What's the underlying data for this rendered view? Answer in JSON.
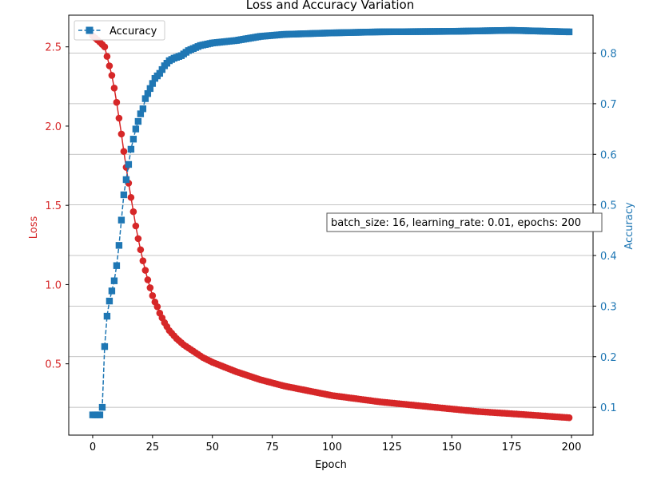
{
  "chart_data": {
    "type": "line",
    "title": "Loss and Accuracy Variation",
    "xlabel": "Epoch",
    "xlim": [
      -10,
      209
    ],
    "x_ticks": [
      0,
      25,
      50,
      75,
      100,
      125,
      150,
      175,
      200
    ],
    "left_axis": {
      "label": "Loss",
      "color": "#d62728",
      "ylim": [
        0.05,
        2.7
      ],
      "ticks": [
        0.5,
        1.0,
        1.5,
        2.0,
        2.5
      ]
    },
    "right_axis": {
      "label": "Accuracy",
      "color": "#1f77b4",
      "ylim": [
        0.045,
        0.875
      ],
      "ticks": [
        0.1,
        0.2,
        0.3,
        0.4,
        0.5,
        0.6,
        0.7,
        0.8
      ]
    },
    "grid": "horizontal-on-right-axis",
    "legend": {
      "position": "top-left",
      "entries": [
        "Accuracy"
      ]
    },
    "annotation": "batch_size: 16, learning_rate: 0.01, epochs: 200",
    "series": [
      {
        "name": "Loss",
        "axis": "left",
        "color": "#d62728",
        "linestyle": "solid",
        "marker": "circle",
        "keypoints": [
          [
            0,
            2.57
          ],
          [
            3,
            2.53
          ],
          [
            5,
            2.5
          ],
          [
            7,
            2.38
          ],
          [
            8,
            2.32
          ],
          [
            9,
            2.24
          ],
          [
            10,
            2.15
          ],
          [
            11,
            2.05
          ],
          [
            12,
            1.95
          ],
          [
            13,
            1.84
          ],
          [
            14,
            1.74
          ],
          [
            15,
            1.64
          ],
          [
            16,
            1.55
          ],
          [
            17,
            1.46
          ],
          [
            18,
            1.37
          ],
          [
            19,
            1.29
          ],
          [
            20,
            1.22
          ],
          [
            21,
            1.15
          ],
          [
            22,
            1.09
          ],
          [
            23,
            1.03
          ],
          [
            24,
            0.98
          ],
          [
            25,
            0.93
          ],
          [
            26,
            0.89
          ],
          [
            27,
            0.86
          ],
          [
            28,
            0.82
          ],
          [
            29,
            0.79
          ],
          [
            30,
            0.76
          ],
          [
            32,
            0.71
          ],
          [
            35,
            0.66
          ],
          [
            38,
            0.62
          ],
          [
            42,
            0.58
          ],
          [
            46,
            0.54
          ],
          [
            50,
            0.51
          ],
          [
            55,
            0.48
          ],
          [
            60,
            0.45
          ],
          [
            70,
            0.4
          ],
          [
            80,
            0.36
          ],
          [
            90,
            0.33
          ],
          [
            100,
            0.3
          ],
          [
            120,
            0.26
          ],
          [
            140,
            0.23
          ],
          [
            160,
            0.2
          ],
          [
            180,
            0.18
          ],
          [
            199,
            0.16
          ]
        ]
      },
      {
        "name": "Accuracy",
        "axis": "right",
        "color": "#1f77b4",
        "linestyle": "dashed",
        "marker": "square",
        "keypoints": [
          [
            0,
            0.085
          ],
          [
            1,
            0.085
          ],
          [
            2,
            0.085
          ],
          [
            3,
            0.085
          ],
          [
            4,
            0.1
          ],
          [
            5,
            0.22
          ],
          [
            6,
            0.28
          ],
          [
            7,
            0.31
          ],
          [
            8,
            0.33
          ],
          [
            9,
            0.35
          ],
          [
            10,
            0.38
          ],
          [
            11,
            0.42
          ],
          [
            12,
            0.47
          ],
          [
            13,
            0.52
          ],
          [
            14,
            0.55
          ],
          [
            15,
            0.58
          ],
          [
            16,
            0.61
          ],
          [
            17,
            0.63
          ],
          [
            18,
            0.65
          ],
          [
            19,
            0.665
          ],
          [
            20,
            0.68
          ],
          [
            21,
            0.69
          ],
          [
            22,
            0.71
          ],
          [
            23,
            0.72
          ],
          [
            24,
            0.73
          ],
          [
            25,
            0.74
          ],
          [
            26,
            0.75
          ],
          [
            28,
            0.76
          ],
          [
            30,
            0.775
          ],
          [
            32,
            0.785
          ],
          [
            34,
            0.79
          ],
          [
            37,
            0.795
          ],
          [
            40,
            0.805
          ],
          [
            45,
            0.815
          ],
          [
            50,
            0.82
          ],
          [
            60,
            0.825
          ],
          [
            70,
            0.833
          ],
          [
            80,
            0.837
          ],
          [
            100,
            0.84
          ],
          [
            120,
            0.842
          ],
          [
            150,
            0.843
          ],
          [
            175,
            0.845
          ],
          [
            199,
            0.842
          ]
        ]
      }
    ]
  }
}
